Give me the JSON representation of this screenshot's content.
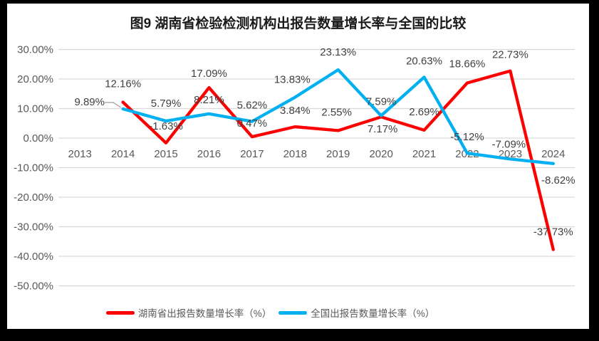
{
  "title": "图9 湖南省检验检测机构出报告数量增长率与全国的比较",
  "colors": {
    "frame_background": "#000000",
    "chart_background": "#FFFFFF",
    "gridline": "#D9D9D9",
    "axis_text": "#595959",
    "data_label_text": "#404040",
    "title_text": "#1a1a1a",
    "leader_line": "#A6A6A6"
  },
  "chart_data": {
    "type": "line",
    "title": "图9 湖南省检验检测机构出报告数量增长率与全国的比较",
    "categories": [
      "2013",
      "2014",
      "2015",
      "2016",
      "2017",
      "2018",
      "2019",
      "2020",
      "2021",
      "2022",
      "2023",
      "2024"
    ],
    "series": [
      {
        "key": "hunan",
        "name": "湖南省出报告数量增长率（%）",
        "color": "#FE0000",
        "values": [
          null,
          12.16,
          -1.63,
          17.09,
          0.47,
          3.84,
          2.55,
          7.17,
          2.69,
          18.66,
          22.73,
          -37.73
        ]
      },
      {
        "key": "national",
        "name": "全国出报告数量增长率（%）",
        "color": "#00B0F0",
        "values": [
          null,
          9.89,
          5.79,
          8.21,
          5.62,
          13.83,
          23.13,
          7.59,
          20.63,
          -5.12,
          -7.09,
          -8.62
        ]
      }
    ],
    "y_axis": {
      "tick_labels": [
        "30.00%",
        "20.00%",
        "10.00%",
        "0.00%",
        "-10.00%",
        "-20.00%",
        "-30.00%",
        "-40.00%",
        "-50.00%"
      ],
      "min": -50,
      "max": 30,
      "step": 10,
      "format": "0.00%"
    },
    "grid": true,
    "data_labels_visible": true,
    "legend_position": "bottom"
  }
}
